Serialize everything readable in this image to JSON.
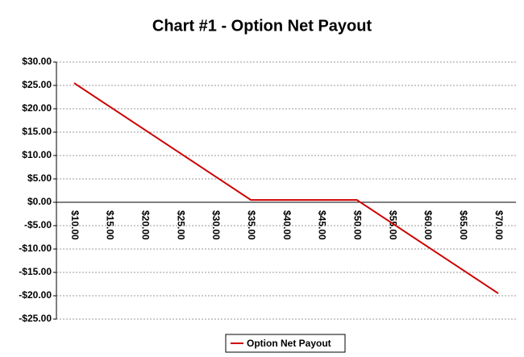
{
  "chart_data": {
    "type": "line",
    "title": "Chart #1 - Option Net Payout",
    "categories": [
      "$10.00",
      "$15.00",
      "$20.00",
      "$25.00",
      "$30.00",
      "$35.00",
      "$40.00",
      "$45.00",
      "$50.00",
      "$55.00",
      "$60.00",
      "$65.00",
      "$70.00"
    ],
    "series": [
      {
        "name": "Option Net Payout",
        "color": "#cc0000",
        "values": [
          25.5,
          20.5,
          15.5,
          10.5,
          5.5,
          0.5,
          0.5,
          0.5,
          0.5,
          -4.5,
          -9.5,
          -14.5,
          -19.5
        ]
      }
    ],
    "ylim": [
      -25,
      30
    ],
    "yticks": [
      {
        "value": -25,
        "label": "-$25.00"
      },
      {
        "value": -20,
        "label": "-$20.00"
      },
      {
        "value": -15,
        "label": "-$15.00"
      },
      {
        "value": -10,
        "label": "-$10.00"
      },
      {
        "value": -5,
        "label": "-$5.00"
      },
      {
        "value": 0,
        "label": "$0.00"
      },
      {
        "value": 5,
        "label": "$5.00"
      },
      {
        "value": 10,
        "label": "$10.00"
      },
      {
        "value": 15,
        "label": "$15.00"
      },
      {
        "value": 20,
        "label": "$20.00"
      },
      {
        "value": 25,
        "label": "$25.00"
      },
      {
        "value": 30,
        "label": "$30.00"
      }
    ],
    "grid": true,
    "legend": "bottom"
  }
}
